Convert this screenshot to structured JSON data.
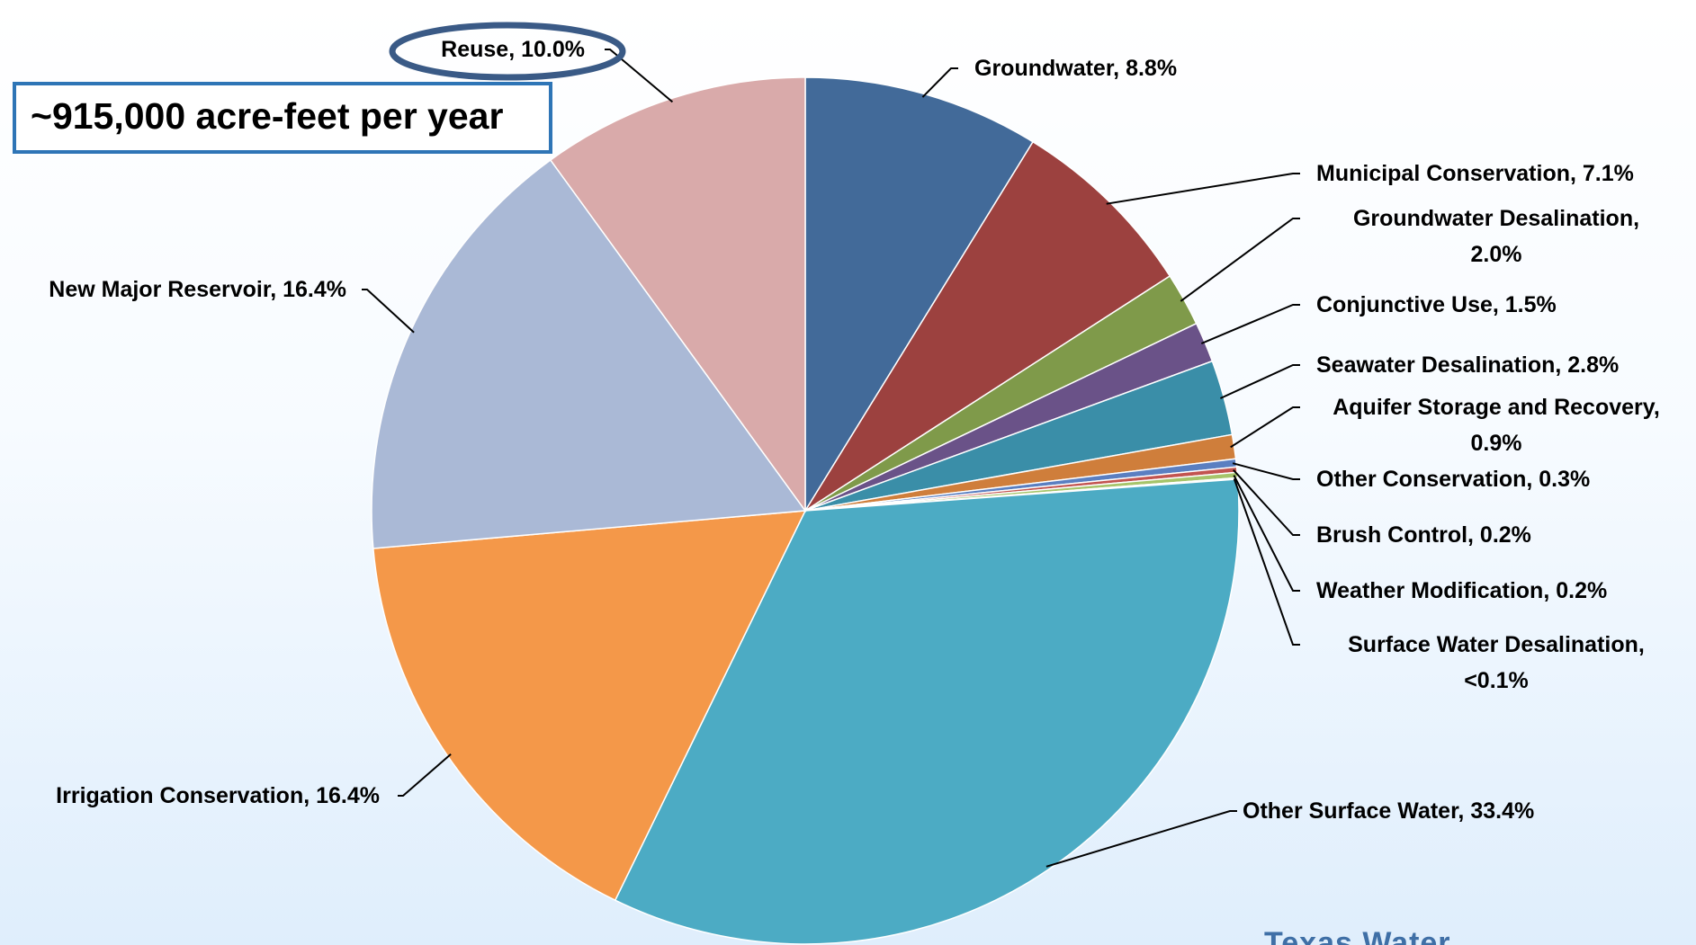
{
  "note": "~915,000 acre-feet per year",
  "logo_text": "Texas Water",
  "highlight_color": "#3a5a86",
  "chart_data": {
    "type": "pie",
    "title": "",
    "slices": [
      {
        "label": "Groundwater, 8.8%",
        "value": 8.8,
        "color": "#426a99"
      },
      {
        "label": "Municipal Conservation, 7.1%",
        "value": 7.1,
        "color": "#9c413f"
      },
      {
        "label": "Groundwater Desalination, 2.0%",
        "label_lines": [
          "Groundwater Desalination,",
          "2.0%"
        ],
        "value": 2.0,
        "color": "#7f9a4a"
      },
      {
        "label": "Conjunctive Use, 1.5%",
        "value": 1.5,
        "color": "#6a5288"
      },
      {
        "label": "Seawater Desalination, 2.8%",
        "value": 2.8,
        "color": "#3a8ea8"
      },
      {
        "label": "Aquifer Storage and Recovery, 0.9%",
        "label_lines": [
          "Aquifer Storage and Recovery,",
          "0.9%"
        ],
        "value": 0.9,
        "color": "#cf7e3b"
      },
      {
        "label": "Other Conservation, 0.3%",
        "value": 0.3,
        "color": "#5a7fc1"
      },
      {
        "label": "Brush Control, 0.2%",
        "value": 0.2,
        "color": "#c25450"
      },
      {
        "label": "Weather Modification, 0.2%",
        "value": 0.2,
        "color": "#a6c46a"
      },
      {
        "label": "Surface Water Desalination, <0.1%",
        "label_lines": [
          "Surface Water Desalination,",
          "<0.1%"
        ],
        "value": 0.05,
        "color": "#8a74a8"
      },
      {
        "label": "Other Surface Water, 33.4%",
        "value": 33.4,
        "color": "#4cabc4"
      },
      {
        "label": "Irrigation Conservation, 16.4%",
        "value": 16.4,
        "color": "#f49849"
      },
      {
        "label": "New Major Reservoir, 16.4%",
        "value": 16.4,
        "color": "#aab9d6"
      },
      {
        "label": "Reuse, 10.0%",
        "value": 10.0,
        "color": "#d9aaaa"
      }
    ]
  }
}
